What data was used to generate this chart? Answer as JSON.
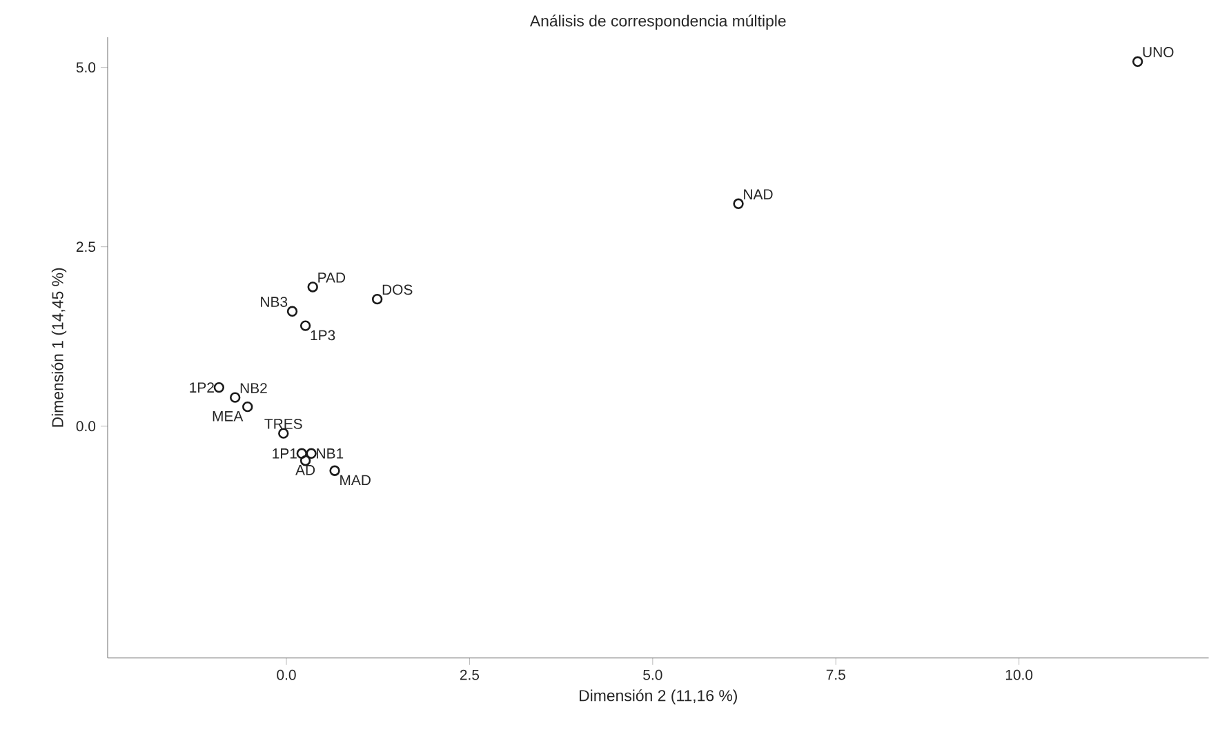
{
  "chart_data": {
    "type": "scatter",
    "title": "Análisis de correspondencia múltiple",
    "xlabel": "Dimensión 2 (11,16 %)",
    "ylabel": "Dimensión 1 (14,45 %)",
    "series": [
      {
        "color": "#1a1a1a",
        "x": [
          11.62,
          6.17,
          0.36,
          1.24,
          0.08,
          0.26,
          -0.92,
          -0.7,
          -0.53,
          -0.04,
          0.21,
          0.34,
          0.26,
          0.66
        ],
        "values": [
          5.08,
          3.1,
          1.94,
          1.77,
          1.6,
          1.4,
          0.54,
          0.4,
          0.27,
          -0.1,
          -0.38,
          -0.38,
          -0.48,
          -0.62
        ]
      }
    ],
    "annotations": [
      {
        "text": "UNO",
        "x": 11.62,
        "y": 5.08
      },
      {
        "text": "NAD",
        "x": 6.17,
        "y": 3.1
      },
      {
        "text": "PAD",
        "x": 0.36,
        "y": 1.94
      },
      {
        "text": "DOS",
        "x": 1.24,
        "y": 1.77
      },
      {
        "text": "NB3",
        "x": 0.08,
        "y": 1.6
      },
      {
        "text": "1P3",
        "x": 0.26,
        "y": 1.4
      },
      {
        "text": "1P2",
        "x": -0.92,
        "y": 0.54
      },
      {
        "text": "NB2",
        "x": -0.7,
        "y": 0.4
      },
      {
        "text": "MEA",
        "x": -0.53,
        "y": 0.27
      },
      {
        "text": "TRES",
        "x": -0.04,
        "y": -0.1
      },
      {
        "text": "1P1",
        "x": 0.21,
        "y": -0.38
      },
      {
        "text": "NB1",
        "x": 0.34,
        "y": -0.38
      },
      {
        "text": "AD",
        "x": 0.26,
        "y": -0.48
      },
      {
        "text": "MAD",
        "x": 0.66,
        "y": -0.62
      }
    ],
    "xlim": [
      -2.44,
      12.59
    ],
    "ylim": [
      -3.23,
      5.42
    ],
    "xticks": [
      {
        "value": 0,
        "label": "0.0"
      },
      {
        "value": 2.5,
        "label": "2.5"
      },
      {
        "value": 5,
        "label": "5.0"
      },
      {
        "value": 7.5,
        "label": "7.5"
      },
      {
        "value": 10,
        "label": "10.0"
      }
    ],
    "yticks": [
      {
        "value": 0,
        "label": "0.0"
      },
      {
        "value": 2.5,
        "label": "2.5"
      },
      {
        "value": 5,
        "label": "5.0"
      }
    ],
    "grid": false,
    "marker": "circle"
  }
}
